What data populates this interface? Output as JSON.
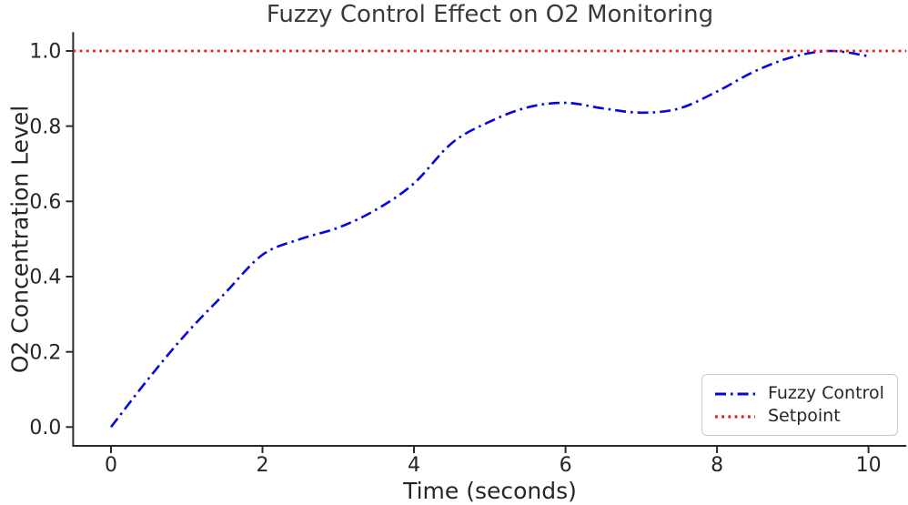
{
  "chart_data": {
    "type": "line",
    "title": "Fuzzy Control Effect on O2 Monitoring",
    "xlabel": "Time (seconds)",
    "ylabel": "O2 Concentration Level",
    "xlim": [
      -0.5,
      10.5
    ],
    "ylim": [
      -0.05,
      1.05
    ],
    "grid": false,
    "legend_position": "lower right",
    "x_ticks": [
      0,
      2,
      4,
      6,
      8,
      10
    ],
    "x_tick_labels": [
      "0",
      "2",
      "4",
      "6",
      "8",
      "10"
    ],
    "y_ticks": [
      0.0,
      0.2,
      0.4,
      0.6,
      0.8,
      1.0
    ],
    "y_tick_labels": [
      "0.0",
      "0.2",
      "0.4",
      "0.6",
      "0.8",
      "1.0"
    ],
    "series": [
      {
        "name": "Fuzzy Control",
        "type": "spline",
        "style": "dashdot",
        "color": "#0606e0",
        "x": [
          0,
          0.5,
          1,
          1.5,
          2,
          2.5,
          3,
          3.5,
          4,
          4.5,
          5,
          5.5,
          6,
          6.5,
          7,
          7.5,
          8,
          8.5,
          9,
          9.5,
          10
        ],
        "y": [
          0.0,
          0.13,
          0.25,
          0.355,
          0.458,
          0.5,
          0.53,
          0.578,
          0.648,
          0.755,
          0.812,
          0.85,
          0.862,
          0.847,
          0.836,
          0.847,
          0.892,
          0.946,
          0.984,
          1.0,
          0.986
        ]
      },
      {
        "name": "Setpoint",
        "type": "hline",
        "style": "dotted",
        "color": "#e51a1a",
        "y": 1.0
      }
    ],
    "axis_color": "#2a2a2a",
    "tick_label_color": "#262626"
  }
}
